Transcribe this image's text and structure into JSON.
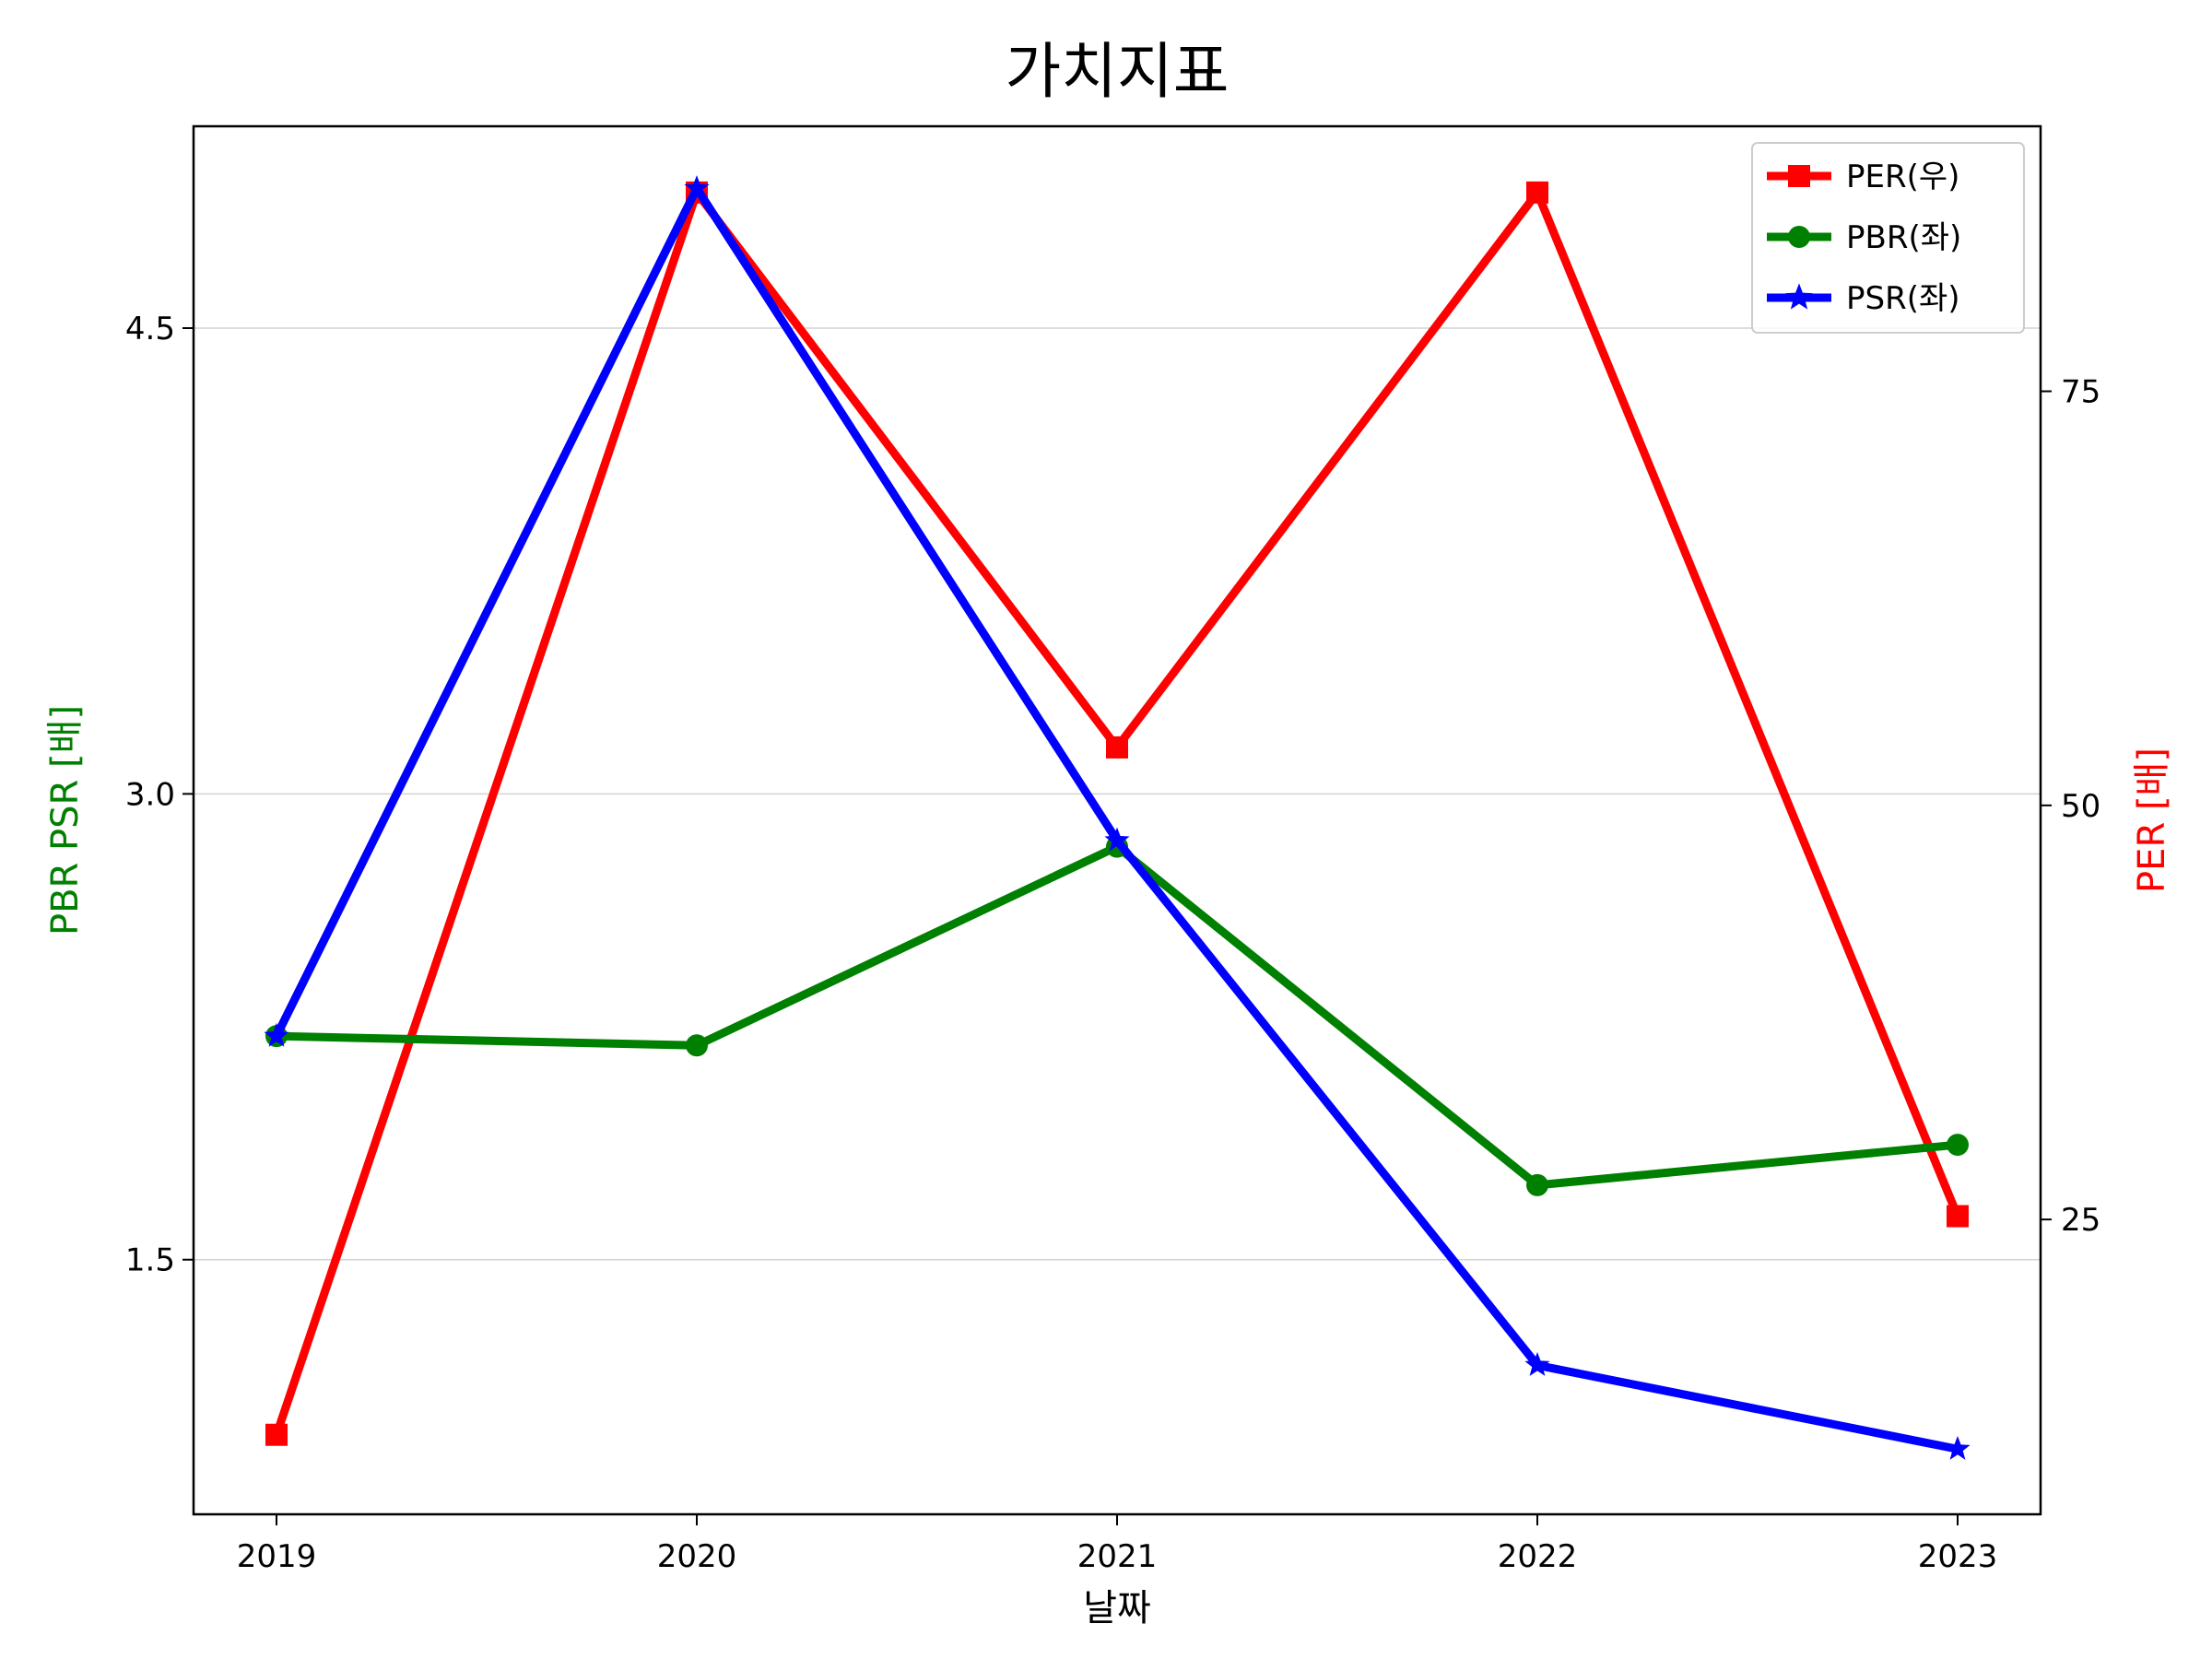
{
  "chart_data": {
    "type": "line",
    "title": "가치지표",
    "xlabel": "날짜",
    "ylabel_left": "PBR PSR [배]",
    "ylabel_right": "PER [배]",
    "ylabel_left_color": "#008000",
    "ylabel_right_color": "#ff0000",
    "categories": [
      "2019",
      "2020",
      "2021",
      "2022",
      "2023"
    ],
    "left_axis": {
      "ylim": [
        0.68,
        5.15
      ],
      "ticks": [
        1.5,
        3.0,
        4.5
      ],
      "tick_labels": [
        "1.5",
        "3.0",
        "4.5"
      ]
    },
    "right_axis": {
      "ylim": [
        7.2,
        91.0
      ],
      "ticks": [
        25,
        50,
        75
      ],
      "tick_labels": [
        "25",
        "50",
        "75"
      ]
    },
    "grid": true,
    "legend_position": "top-right",
    "series": [
      {
        "name": "PER(우)",
        "axis": "right",
        "color": "#ff0000",
        "marker": "square",
        "values": [
          12.0,
          87.0,
          53.5,
          87.0,
          25.2
        ]
      },
      {
        "name": "PBR(좌)",
        "axis": "left",
        "color": "#008000",
        "marker": "circle",
        "values": [
          2.22,
          2.19,
          2.83,
          1.74,
          1.87
        ]
      },
      {
        "name": "PSR(좌)",
        "axis": "left",
        "color": "#0000ff",
        "marker": "star",
        "values": [
          2.22,
          4.95,
          2.85,
          1.16,
          0.89
        ]
      }
    ]
  }
}
